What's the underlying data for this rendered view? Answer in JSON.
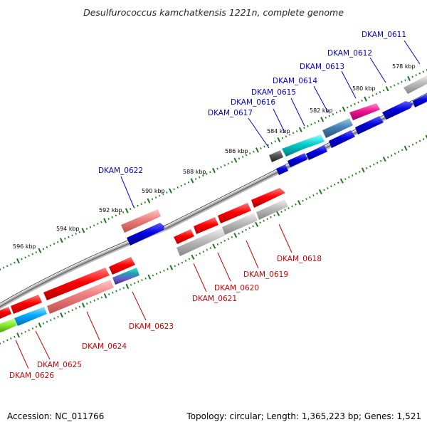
{
  "title": "Desulfurococcus kamchatkensis 1221n, complete genome",
  "footer": {
    "accession": "Accession: NC_011766",
    "topology": "Topology: circular; Length: 1,365,223 bp; Genes: 1,521"
  },
  "colors": {
    "forward_label": "#0000cc",
    "reverse_label": "#cc0000",
    "backbone": "#888888",
    "tick": "#1a7a1a"
  },
  "scale_ticks": [
    "578 kbp",
    "580 kbp",
    "582 kbp",
    "584 kbp",
    "586 kbp",
    "588 kbp",
    "590 kbp",
    "592 kbp",
    "594 kbp",
    "596 kbp"
  ],
  "genes_forward": [
    {
      "label": "DKAM_0611",
      "color": "#aaaaaa"
    },
    {
      "label": "DKAM_0612",
      "color": "#0000dd"
    },
    {
      "label": "DKAM_0613",
      "color": "#ee1493"
    },
    {
      "label": "DKAM_0614",
      "color": "#0000dd"
    },
    {
      "label": "DKAM_0615",
      "color": "#4682b4"
    },
    {
      "label": "DKAM_0616",
      "color": "#00cccc"
    },
    {
      "label": "DKAM_0617",
      "color": "#0000dd"
    },
    {
      "label": "DKAM_0622",
      "color": "#555555"
    }
  ],
  "genes_reverse": [
    {
      "label": "DKAM_0618",
      "color": "#ff0000"
    },
    {
      "label": "DKAM_0619",
      "color": "#aaaaaa"
    },
    {
      "label": "DKAM_0620",
      "color": "#ff0000"
    },
    {
      "label": "DKAM_0621",
      "color": "#aaaaaa"
    },
    {
      "label": "DKAM_0623",
      "color": "#ee6666"
    },
    {
      "label": "DKAM_0624",
      "color": "#ff0000"
    },
    {
      "label": "DKAM_0625",
      "color": "#00aaff"
    },
    {
      "label": "DKAM_0626",
      "color": "#88ee33"
    }
  ]
}
